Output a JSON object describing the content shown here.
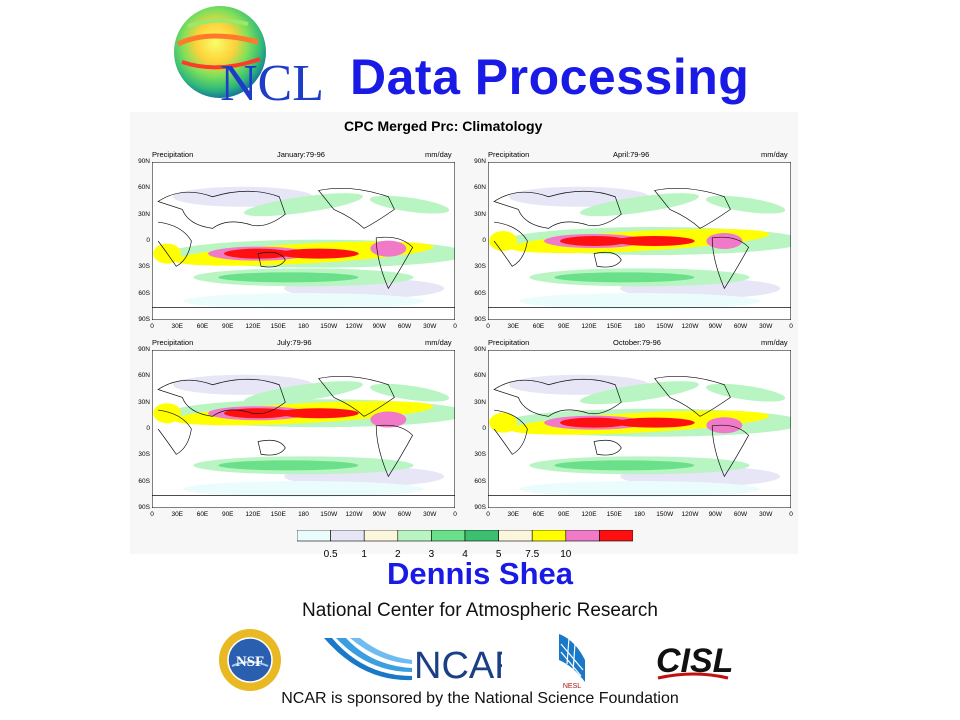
{
  "slide": {
    "title": "Data Processing",
    "author": "Dennis Shea",
    "affiliation": "National Center for Atmospheric Research",
    "sponsor_note": "NCAR is sponsored by the National Science Foundation"
  },
  "logos": {
    "ncl": "NCL",
    "nsf": "NSF",
    "ncar": "NCAR",
    "nesl": "NESL",
    "cisl": "CISL"
  },
  "figure": {
    "title": "CPC Merged Prc: Climatology",
    "variable": "Precipitation",
    "units": "mm/day",
    "panels": [
      {
        "period": "January:79-96"
      },
      {
        "period": "April:79-96"
      },
      {
        "period": "July:79-96"
      },
      {
        "period": "October:79-96"
      }
    ],
    "lat_ticks": [
      "90N",
      "60N",
      "30N",
      "0",
      "30S",
      "60S",
      "90S"
    ],
    "lon_ticks": [
      "0",
      "30E",
      "60E",
      "90E",
      "120E",
      "150E",
      "180",
      "150W",
      "120W",
      "90W",
      "60W",
      "30W",
      "0"
    ],
    "colorbar": {
      "labels": [
        "0.5",
        "1",
        "2",
        "3",
        "4",
        "5",
        "7.5",
        "10"
      ],
      "colors": [
        "#eafcfc",
        "#e6e6f7",
        "#fbf6dc",
        "#b9f5c3",
        "#6be08b",
        "#3cbf6e",
        "#fbf6dc",
        "#ffff00",
        "#f07ac8",
        "#ff1010"
      ]
    }
  }
}
